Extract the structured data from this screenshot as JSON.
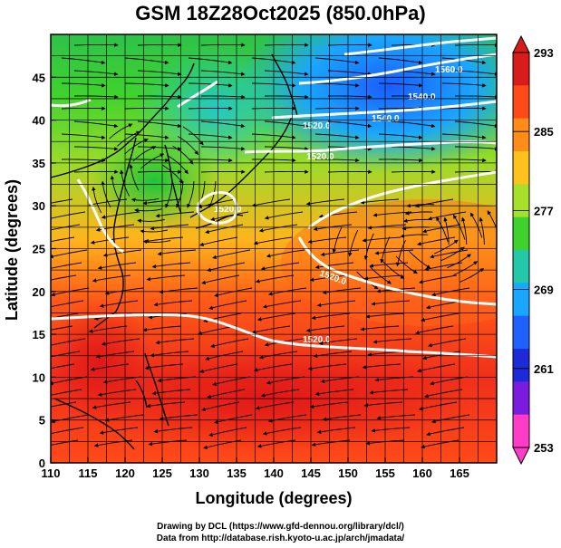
{
  "title": "GSM 18Z28Oct2025 (850.0hPa)",
  "x_axis": {
    "label": "Longitude (degrees)",
    "ticks": [
      "110",
      "115",
      "120",
      "125",
      "130",
      "135",
      "140",
      "145",
      "150",
      "155",
      "160",
      "165"
    ]
  },
  "y_axis": {
    "label": "Latitude  (degrees)",
    "ticks": [
      "0",
      "5",
      "10",
      "15",
      "20",
      "25",
      "30",
      "35",
      "40",
      "45"
    ]
  },
  "colorbar": {
    "labels": [
      "293",
      "285",
      "277",
      "269",
      "261",
      "253"
    ],
    "colors": [
      "#d81b1b",
      "#ff4a18",
      "#ff8c18",
      "#ffc21c",
      "#a6e02a",
      "#3fd22e",
      "#22c8a8",
      "#1aa6ff",
      "#2060ff",
      "#1c2ad8",
      "#7a1ce0",
      "#ff3cc8"
    ]
  },
  "contours": {
    "labels": [
      "1520.0",
      "1520.0",
      "1520.0",
      "1520.0",
      "1560.0",
      "1540.0",
      "1540.0",
      "1520.0"
    ]
  },
  "footer": {
    "line1": "Drawing by DCL (https://www.gfd-dennou.org/library/dcl/)",
    "line2": "Data from http://database.rish.kyoto-u.ac.jp/arch/jmadata/"
  }
}
